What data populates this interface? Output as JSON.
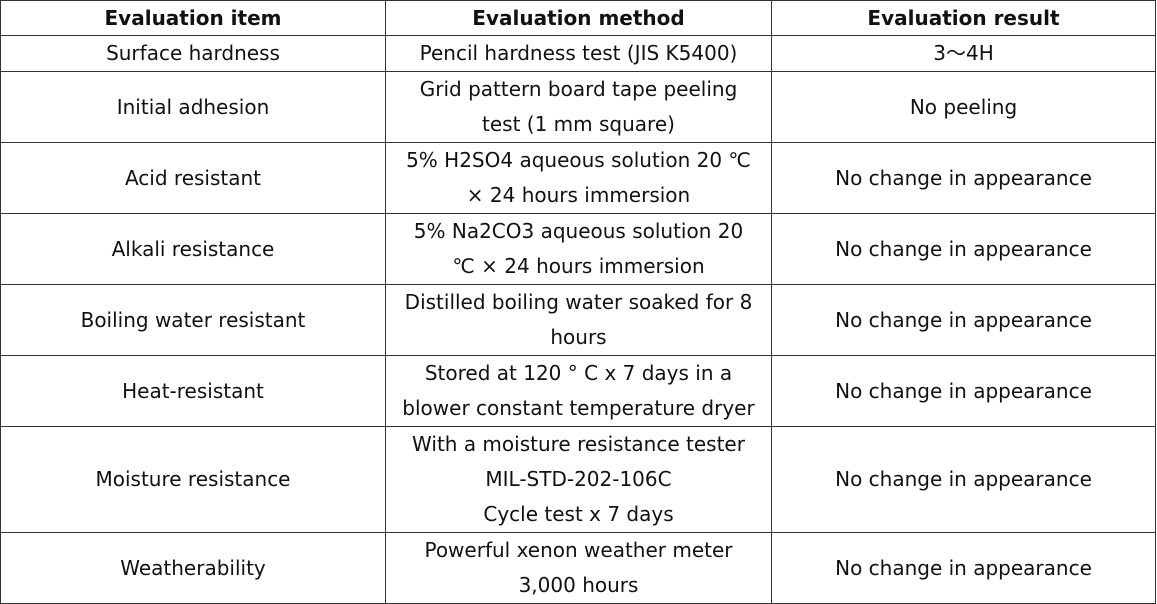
{
  "table": {
    "headers": [
      "Evaluation item",
      "Evaluation method",
      "Evaluation result"
    ],
    "rows": [
      {
        "item": "Surface hardness",
        "method": [
          "Pencil hardness test (JIS K5400)"
        ],
        "result": "3～4H"
      },
      {
        "item": "Initial adhesion",
        "method": [
          "Grid pattern board tape peeling",
          "test (1 mm square)"
        ],
        "result": "No peeling"
      },
      {
        "item": "Acid resistant",
        "method": [
          "5% H2SO4 aqueous solution 20 ℃",
          "× 24 hours immersion"
        ],
        "result": "No change in appearance"
      },
      {
        "item": "Alkali resistance",
        "method": [
          "5% Na2CO3 aqueous solution 20",
          "℃ × 24 hours immersion"
        ],
        "result": "No change in appearance"
      },
      {
        "item": "Boiling water resistant",
        "method": [
          "Distilled boiling water soaked for 8",
          "hours"
        ],
        "result": "No change in appearance"
      },
      {
        "item": "Heat-resistant",
        "method": [
          "Stored at 120 ° C x 7 days in a",
          "blower constant temperature dryer"
        ],
        "result": "No change in appearance"
      },
      {
        "item": "Moisture resistance",
        "method": [
          "With a moisture resistance tester",
          "MIL-STD-202-106C",
          "Cycle test x 7 days"
        ],
        "result": "No change in appearance"
      },
      {
        "item": "Weatherability",
        "method": [
          "Powerful xenon weather meter",
          "3,000 hours"
        ],
        "result": "No change in appearance"
      }
    ]
  }
}
